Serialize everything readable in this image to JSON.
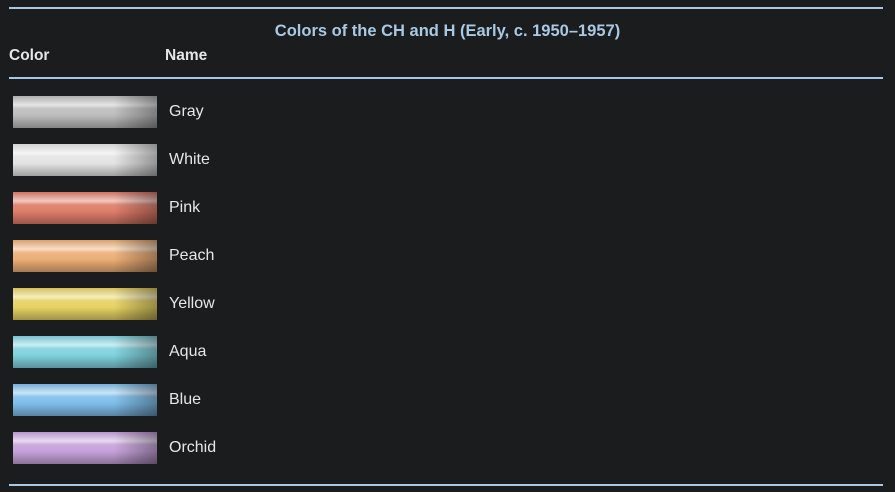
{
  "title": "Colors of the CH and H (Early, c. 1950–1957)",
  "headers": {
    "color": "Color",
    "name": "Name"
  },
  "rows": [
    {
      "name": "Gray",
      "color": "#bdbdbd"
    },
    {
      "name": "White",
      "color": "#e4e4e4"
    },
    {
      "name": "Pink",
      "color": "#df7c6a"
    },
    {
      "name": "Peach",
      "color": "#ecae76"
    },
    {
      "name": "Yellow",
      "color": "#e6d264"
    },
    {
      "name": "Aqua",
      "color": "#80d2de"
    },
    {
      "name": "Blue",
      "color": "#7ebeea"
    },
    {
      "name": "Orchid",
      "color": "#c6a2da"
    }
  ]
}
